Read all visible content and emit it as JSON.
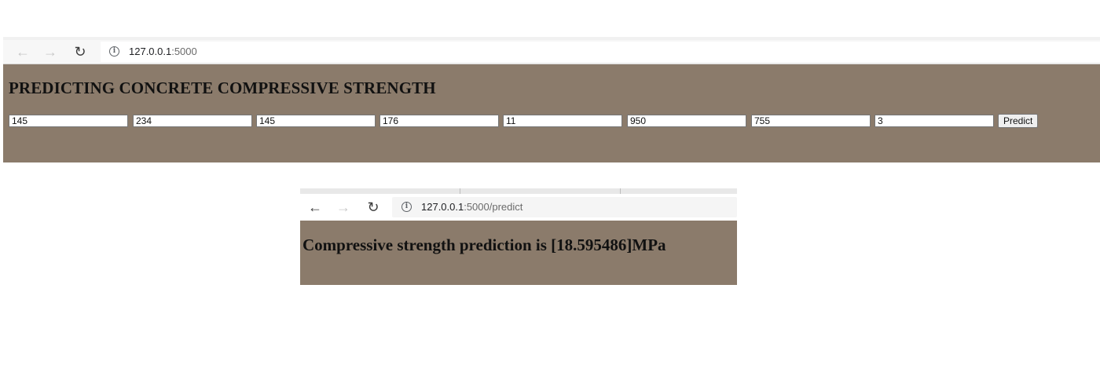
{
  "browser1": {
    "url_host": "127.0.0.1",
    "url_path": ":5000",
    "heading": "PREDICTING CONCRETE COMPRESSIVE STRENGTH",
    "inputs": [
      "145",
      "234",
      "145",
      "176",
      "11",
      "950",
      "755",
      "3"
    ],
    "predict_label": "Predict",
    "icons": {
      "back": "arrow-left-icon",
      "forward": "arrow-right-icon",
      "reload": "reload-icon",
      "info": "info-icon"
    }
  },
  "browser2": {
    "url_host": "127.0.0.1",
    "url_path": ":5000/predict",
    "result": "Compressive strength prediction is [18.595486]MPa",
    "icons": {
      "back": "arrow-left-icon",
      "forward": "arrow-right-icon",
      "reload": "reload-icon",
      "info": "info-icon"
    }
  },
  "colors": {
    "page_background": "#8b7b6b",
    "text": "#111111"
  }
}
